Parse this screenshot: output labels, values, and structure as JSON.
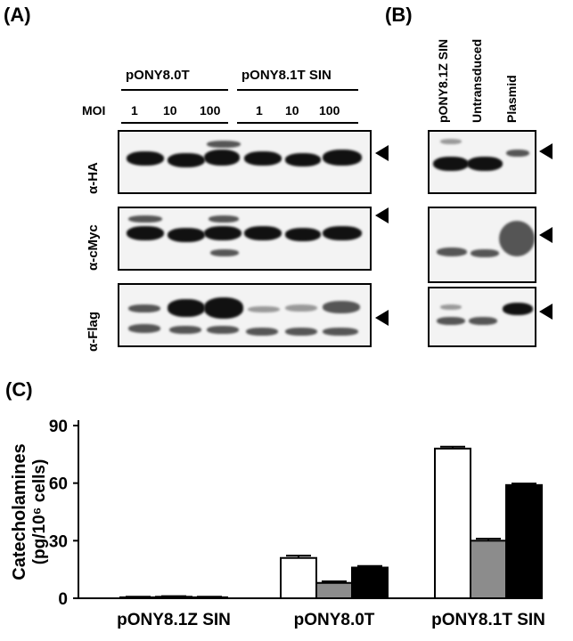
{
  "panels": {
    "a": "(A)",
    "b": "(B)",
    "c": "(C)"
  },
  "panel_a": {
    "groups": [
      "pONY8.0T",
      "pONY8.1T SIN"
    ],
    "moi_label": "MOI",
    "moi_values": [
      "1",
      "10",
      "100",
      "1",
      "10",
      "100"
    ],
    "antibodies": [
      "α-HA",
      "α-cMyc",
      "α-Flag"
    ]
  },
  "panel_b": {
    "lanes": [
      "pONY8.1Z SIN",
      "Untransduced",
      "Plasmid"
    ]
  },
  "chart_data": {
    "type": "bar",
    "categories": [
      "pONY8.1Z SIN",
      "pONY8.0T",
      "pONY8.1T SIN"
    ],
    "series": [
      {
        "values": [
          0.5,
          21,
          78
        ],
        "color": "#ffffff"
      },
      {
        "values": [
          0.8,
          8,
          30
        ],
        "color": "#8c8c8c"
      },
      {
        "values": [
          0.5,
          16,
          59
        ],
        "color": "#000000"
      }
    ],
    "error_bars": [
      [
        0.3,
        1.2,
        1.0
      ],
      [
        0.3,
        0.8,
        1.0
      ],
      [
        0.3,
        0.8,
        0.8
      ]
    ],
    "ylabel_line1": "Catecholamines",
    "ylabel_line2": "(pg/10⁶ cells)",
    "yticks": [
      "0",
      "30",
      "60",
      "90"
    ],
    "ylim": [
      0,
      90
    ]
  }
}
